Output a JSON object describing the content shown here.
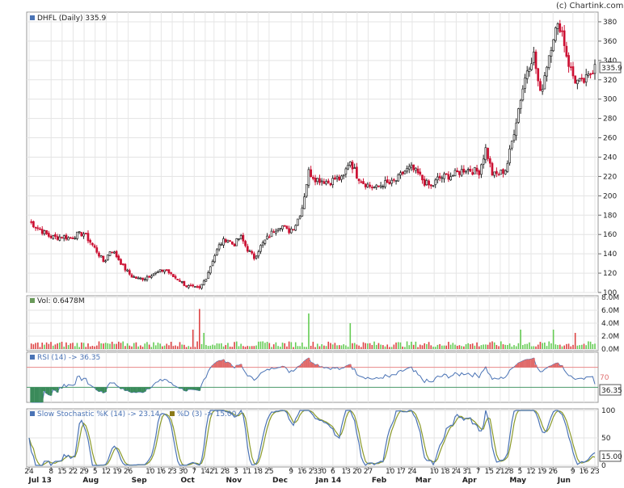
{
  "chart_data": {
    "type": "candlestick",
    "credit": "(c) Chartink.com",
    "main": {
      "title": "DHFL (Daily) 335.9",
      "last_value_label": "335.9",
      "ylim": [
        100,
        390
      ],
      "ticks": [
        100,
        120,
        140,
        160,
        180,
        200,
        220,
        240,
        260,
        280,
        300,
        320,
        340,
        360,
        380
      ],
      "close_path": [
        [
          0,
          174
        ],
        [
          3,
          168
        ],
        [
          6,
          163
        ],
        [
          9,
          158
        ],
        [
          12,
          157
        ],
        [
          15,
          158
        ],
        [
          18,
          156
        ],
        [
          21,
          160
        ],
        [
          24,
          161
        ],
        [
          27,
          152
        ],
        [
          30,
          142
        ],
        [
          33,
          131
        ],
        [
          36,
          145
        ],
        [
          39,
          136
        ],
        [
          42,
          125
        ],
        [
          45,
          117
        ],
        [
          48,
          114
        ],
        [
          51,
          115
        ],
        [
          54,
          119
        ],
        [
          57,
          121
        ],
        [
          60,
          124
        ],
        [
          63,
          117
        ],
        [
          66,
          113
        ],
        [
          69,
          107
        ],
        [
          72,
          105
        ],
        [
          75,
          104
        ],
        [
          78,
          116
        ],
        [
          81,
          135
        ],
        [
          84,
          150
        ],
        [
          87,
          156
        ],
        [
          90,
          149
        ],
        [
          93,
          158
        ],
        [
          96,
          145
        ],
        [
          99,
          136
        ],
        [
          102,
          148
        ],
        [
          105,
          157
        ],
        [
          108,
          165
        ],
        [
          111,
          170
        ],
        [
          114,
          163
        ],
        [
          117,
          169
        ],
        [
          120,
          186
        ],
        [
          123,
          225
        ],
        [
          126,
          218
        ],
        [
          129,
          216
        ],
        [
          132,
          214
        ],
        [
          135,
          218
        ],
        [
          138,
          217
        ],
        [
          141,
          238
        ],
        [
          144,
          222
        ],
        [
          147,
          214
        ],
        [
          150,
          210
        ],
        [
          153,
          208
        ],
        [
          156,
          213
        ],
        [
          159,
          212
        ],
        [
          162,
          217
        ],
        [
          165,
          225
        ],
        [
          168,
          229
        ],
        [
          171,
          223
        ],
        [
          174,
          214
        ],
        [
          177,
          209
        ],
        [
          180,
          218
        ],
        [
          183,
          220
        ],
        [
          186,
          221
        ],
        [
          189,
          224
        ],
        [
          192,
          228
        ],
        [
          195,
          226
        ],
        [
          198,
          225
        ],
        [
          201,
          249
        ],
        [
          204,
          221
        ],
        [
          207,
          223
        ],
        [
          210,
          228
        ],
        [
          213,
          262
        ],
        [
          216,
          298
        ],
        [
          219,
          330
        ],
        [
          222,
          347
        ],
        [
          225,
          304
        ],
        [
          228,
          338
        ],
        [
          231,
          369
        ],
        [
          234,
          377
        ],
        [
          237,
          340
        ],
        [
          240,
          320
        ],
        [
          243,
          316
        ],
        [
          246,
          322
        ],
        [
          249,
          335.9
        ]
      ],
      "x_ticks": [
        {
          "label": "24",
          "i": 0
        },
        {
          "label": "8",
          "i": 10
        },
        {
          "label": "15",
          "i": 15
        },
        {
          "label": "22",
          "i": 20
        },
        {
          "label": "29",
          "i": 25
        },
        {
          "label": "5",
          "i": 30
        },
        {
          "label": "12",
          "i": 35
        },
        {
          "label": "19",
          "i": 40
        },
        {
          "label": "26",
          "i": 45
        },
        {
          "label": "10",
          "i": 55
        },
        {
          "label": "16",
          "i": 60
        },
        {
          "label": "23",
          "i": 65
        },
        {
          "label": "30",
          "i": 70
        },
        {
          "label": "7",
          "i": 75
        },
        {
          "label": "14",
          "i": 80
        },
        {
          "label": "21",
          "i": 84
        },
        {
          "label": "28",
          "i": 89
        },
        {
          "label": "3",
          "i": 94
        },
        {
          "label": "11",
          "i": 99
        },
        {
          "label": "18",
          "i": 104
        },
        {
          "label": "25",
          "i": 109
        },
        {
          "label": "9",
          "i": 119
        },
        {
          "label": "16",
          "i": 124
        },
        {
          "label": "23",
          "i": 129
        },
        {
          "label": "30",
          "i": 133
        },
        {
          "label": "6",
          "i": 138
        },
        {
          "label": "13",
          "i": 144
        },
        {
          "label": "20",
          "i": 149
        },
        {
          "label": "27",
          "i": 154
        },
        {
          "label": "10",
          "i": 164
        },
        {
          "label": "17",
          "i": 169
        },
        {
          "label": "24",
          "i": 174
        },
        {
          "label": "10",
          "i": 184
        },
        {
          "label": "18",
          "i": 189
        },
        {
          "label": "24",
          "i": 194
        },
        {
          "label": "31",
          "i": 199
        },
        {
          "label": "7",
          "i": 204
        },
        {
          "label": "15",
          "i": 209
        },
        {
          "label": "21",
          "i": 214
        },
        {
          "label": "28",
          "i": 218
        },
        {
          "label": "5",
          "i": 223
        },
        {
          "label": "12",
          "i": 228
        },
        {
          "label": "19",
          "i": 233
        },
        {
          "label": "26",
          "i": 238
        },
        {
          "label": "9",
          "i": 247
        },
        {
          "label": "16",
          "i": 252
        },
        {
          "label": "23",
          "i": 257
        }
      ],
      "months": [
        {
          "label": "Jul 13",
          "i": 5
        },
        {
          "label": "Aug",
          "i": 28
        },
        {
          "label": "Sep",
          "i": 50
        },
        {
          "label": "Oct",
          "i": 72
        },
        {
          "label": "Nov",
          "i": 93
        },
        {
          "label": "Dec",
          "i": 114
        },
        {
          "label": "Jan 14",
          "i": 136
        },
        {
          "label": "Feb",
          "i": 159
        },
        {
          "label": "Mar",
          "i": 179
        },
        {
          "label": "Apr",
          "i": 200
        },
        {
          "label": "May",
          "i": 222
        },
        {
          "label": "Jun",
          "i": 243
        }
      ]
    },
    "volume": {
      "label": "Vol: 0.6478M",
      "ticks": [
        "0.0M",
        "2.0M",
        "4.0M",
        "6.0M",
        "8.0M"
      ],
      "ylim": [
        0,
        8
      ],
      "spikes": [
        [
          72,
          3.0
        ],
        [
          75,
          6.2
        ],
        [
          77,
          2.5
        ],
        [
          123,
          5.5
        ],
        [
          141,
          4.0
        ],
        [
          216,
          3.0
        ],
        [
          231,
          3.0
        ],
        [
          240,
          2.5
        ]
      ]
    },
    "rsi": {
      "label": "RSI (14) -> 36.35",
      "value_label": "36.35",
      "overbought": 70,
      "oversold": 30,
      "tick_70": "70"
    },
    "stochastic": {
      "k_label": "Slow Stochastic %K (14) -> 23.14",
      "d_label": "%D (3) -> 15.00",
      "value_label": "15.00",
      "ticks": [
        0,
        50,
        100
      ]
    },
    "colors": {
      "up": "#222222",
      "down": "#cc1133",
      "rsi": "#4a73b5",
      "k": "#4a73b5",
      "d": "#8b9a2a",
      "vol_up": "#66cc55",
      "vol_down": "#dd4444",
      "band_high": "#e88888",
      "band_low": "#4a9a6a"
    }
  }
}
